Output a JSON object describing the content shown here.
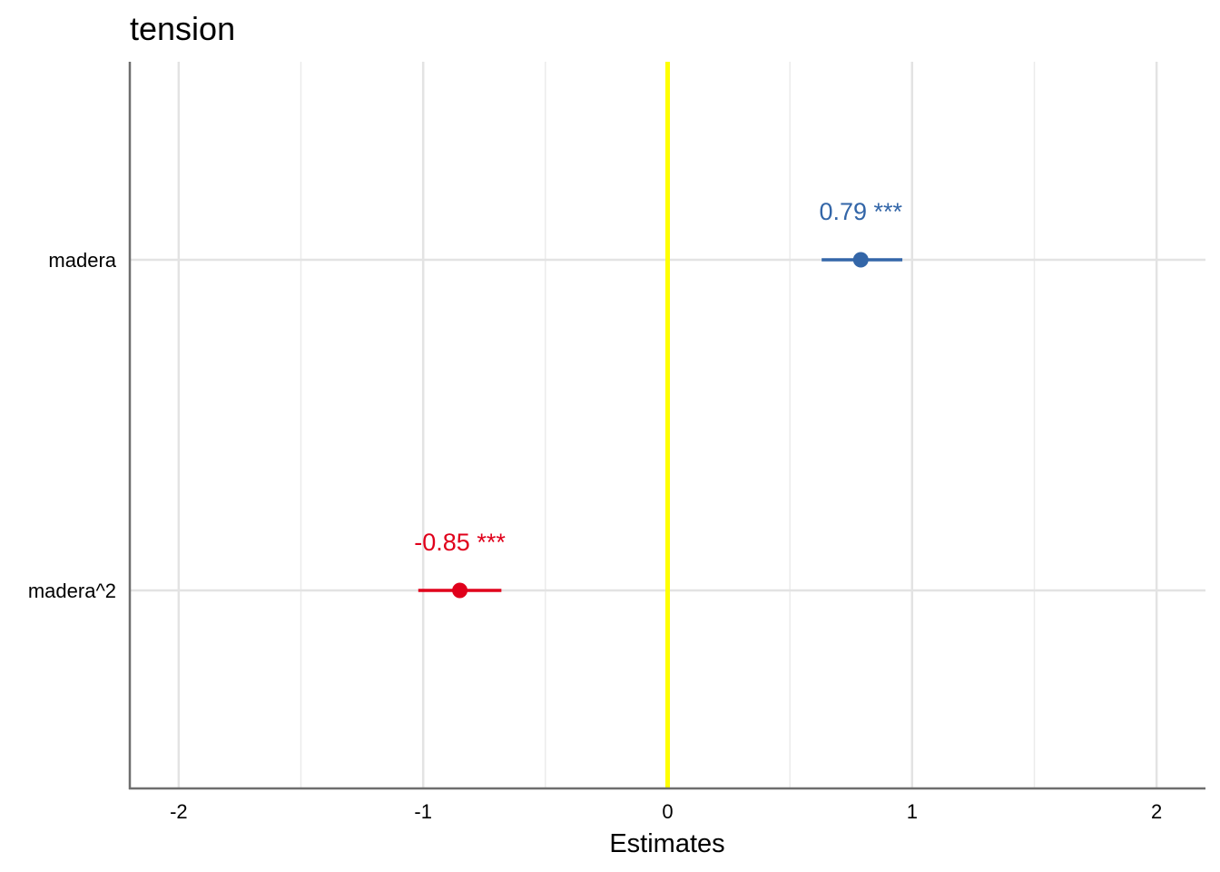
{
  "chart_data": {
    "type": "scatter",
    "title": "tension",
    "xlabel": "Estimates",
    "ylabel": "",
    "xlim": [
      -2.2,
      2.2
    ],
    "x_ticks": [
      -2,
      -1,
      0,
      1,
      2
    ],
    "x_tick_labels": [
      "-2",
      "-1",
      "0",
      "1",
      "2"
    ],
    "x_minor_grid": [
      -1.5,
      -0.5,
      0.5,
      1.5
    ],
    "grid": true,
    "reference_line": {
      "x": 0,
      "color": "#FFFF00"
    },
    "terms": [
      {
        "term": "madera",
        "estimate": 0.79,
        "conf_low": 0.63,
        "conf_high": 0.96,
        "label": "0.79 ***",
        "color": "#3366A8"
      },
      {
        "term": "madera^2",
        "estimate": -0.85,
        "conf_low": -1.02,
        "conf_high": -0.68,
        "label": "-0.85 ***",
        "color": "#E0001B"
      }
    ]
  }
}
